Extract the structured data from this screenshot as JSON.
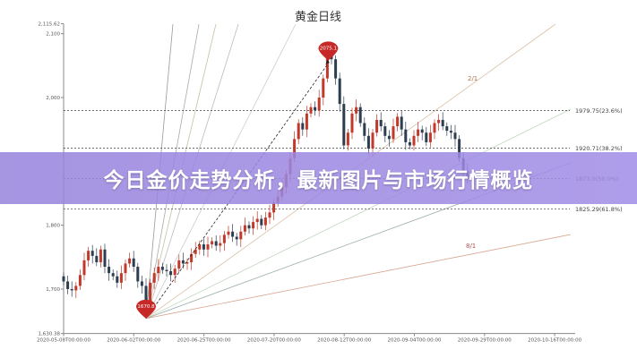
{
  "chart_data": {
    "type": "candlestick",
    "title": "黄金日线",
    "ylim": [
      1630.38,
      2115.62
    ],
    "y_ticks": [
      "1,630.38",
      "1,700",
      "1,800",
      "2,000",
      "2,100",
      "2,115.62"
    ],
    "y_tick_values": [
      1630.38,
      1700,
      1800,
      2000,
      2100,
      2115.62
    ],
    "x_ticks": [
      "2020-05-08T00:00:00",
      "2020-06-02T00:00:00",
      "2020-06-25T00:00:00",
      "2020-07-20T00:00:00",
      "2020-08-12T00:00:00",
      "2020-09-04T00:00:00",
      "2020-09-29T00:00:00",
      "2020-10-16T00:00:00"
    ],
    "closes": [
      1712,
      1700,
      1698,
      1705,
      1722,
      1745,
      1760,
      1752,
      1742,
      1762,
      1735,
      1725,
      1720,
      1710,
      1725,
      1740,
      1748,
      1735,
      1712,
      1705,
      1680,
      1710,
      1725,
      1735,
      1730,
      1728,
      1722,
      1732,
      1745,
      1740,
      1742,
      1755,
      1762,
      1770,
      1762,
      1770,
      1775,
      1768,
      1772,
      1785,
      1790,
      1782,
      1778,
      1790,
      1800,
      1795,
      1805,
      1810,
      1800,
      1812,
      1820,
      1835,
      1845,
      1860,
      1880,
      1905,
      1935,
      1960,
      1950,
      1975,
      1985,
      1980,
      2000,
      2030,
      2065,
      2060,
      2030,
      1990,
      1925,
      1945,
      1975,
      1985,
      1960,
      1940,
      1920,
      1945,
      1965,
      1955,
      1940,
      1935,
      1955,
      1970,
      1950,
      1930,
      1925,
      1940,
      1950,
      1945,
      1930,
      1945,
      1960,
      1965,
      1955,
      1948,
      1945,
      1935,
      1905,
      1885,
      1875
    ],
    "low_marker": {
      "label": "1670.8",
      "value": 1670.8
    },
    "high_marker": {
      "label": "2075.1",
      "value": 2075.1
    },
    "fib_levels": [
      {
        "value": 1979.75,
        "label": "1979.75(23.6%)"
      },
      {
        "value": 1920.71,
        "label": "1920.71(38.2%)"
      },
      {
        "value": 1873.0,
        "label": "1873.0(50.0%)"
      },
      {
        "value": 1825.29,
        "label": "1825.29(61.8%)"
      }
    ],
    "fan_labels": [
      "2/1",
      "8/1"
    ],
    "colors": {
      "up": "#c0392b",
      "down": "#2c3e50",
      "fan_warm": "#d9a58f",
      "fan_cool": "#9fbf9f"
    },
    "grid": false
  },
  "banner": {
    "text": "今日金价走势分析，最新图片与市场行情概览"
  }
}
